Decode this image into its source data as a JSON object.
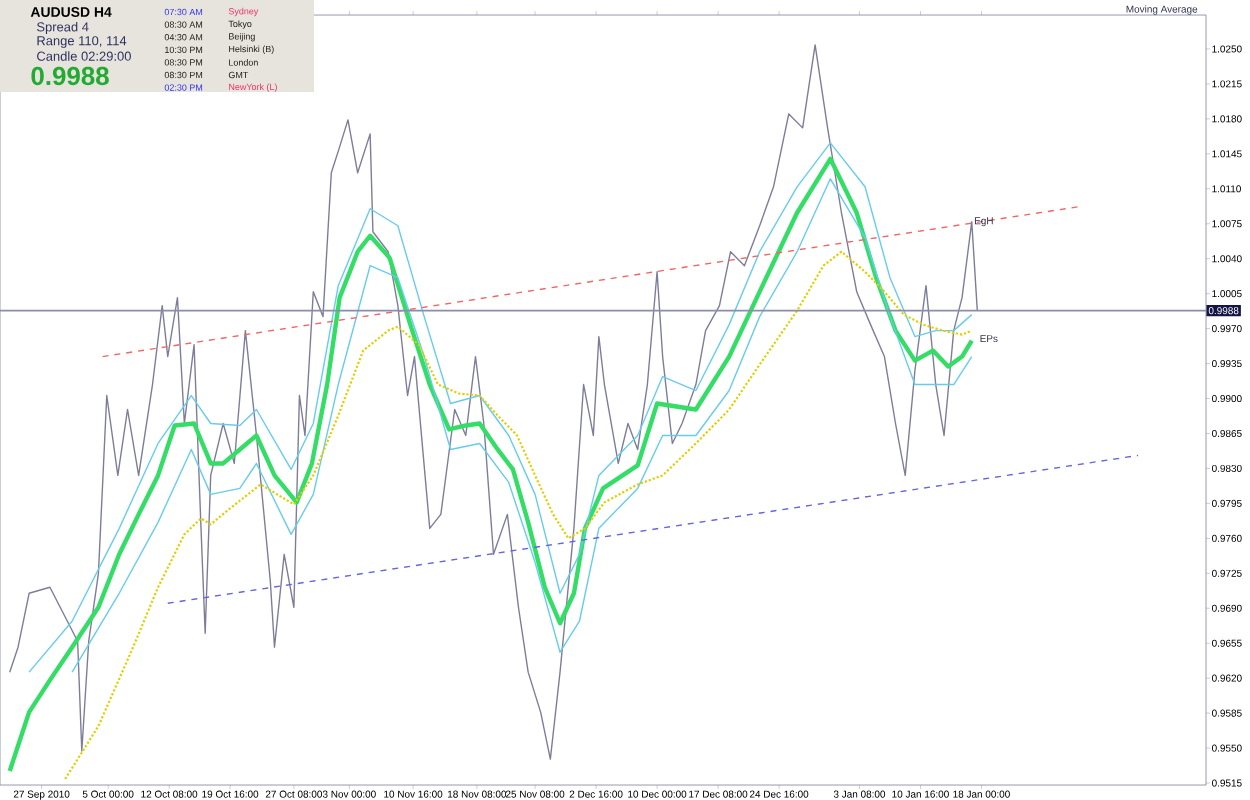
{
  "chart_data": {
    "type": "line",
    "title": "AUDUSD  H4",
    "annotations": [
      "Spread  4",
      "Range  110, 114",
      "Candle  02:29:00",
      "0.9988",
      "07:30 AM",
      "Sydney",
      "08:30 AM",
      "Tokyo",
      "04:30 AM",
      "Beijing",
      "10:30 PM",
      "Helsinki (B)",
      "08:30 PM",
      "London",
      "08:30 PM",
      "GMT",
      "02:30 PM",
      "NewYork (L)",
      "Moving Average",
      {
        "text": "EgH",
        "x": "2011-01-16T20:00",
        "y": 1.0077
      },
      {
        "text": "EPs",
        "x": "2011-01-17T12:00",
        "y": 0.996
      }
    ],
    "xlim": [
      "2010-09-22",
      "2011-02-14"
    ],
    "ylim": [
      0.9513,
      1.0284
    ],
    "xticks": [
      {
        "value": "2010-09-27",
        "label": "27 Sep 2010"
      },
      {
        "value": "2010-10-05",
        "label": "5 Oct 00:00"
      },
      {
        "value": "2010-10-12T08:00",
        "label": "12 Oct 08:00"
      },
      {
        "value": "2010-10-19T16:00",
        "label": "19 Oct 16:00"
      },
      {
        "value": "2010-10-27T08:00",
        "label": "27 Oct 08:00"
      },
      {
        "value": "2010-11-03",
        "label": "3 Nov 00:00"
      },
      {
        "value": "2010-11-10T16:00",
        "label": "10 Nov 16:00"
      },
      {
        "value": "2010-11-18T08:00",
        "label": "18 Nov 08:00"
      },
      {
        "value": "2010-11-25T08:00",
        "label": "25 Nov 08:00"
      },
      {
        "value": "2010-12-02T16:00",
        "label": "2 Dec 16:00"
      },
      {
        "value": "2010-12-10",
        "label": "10 Dec 00:00"
      },
      {
        "value": "2010-12-17T08:00",
        "label": "17 Dec 08:00"
      },
      {
        "value": "2010-12-24T16:00",
        "label": "24 Dec 16:00"
      },
      {
        "value": "2011-01-03T08:00",
        "label": "3 Jan 08:00"
      },
      {
        "value": "2011-01-10T16:00",
        "label": "10 Jan 16:00"
      },
      {
        "value": "2011-01-18",
        "label": "18 Jan 00:00"
      }
    ],
    "yticks": [
      {
        "value": 0.9515,
        "label": "0.9515"
      },
      {
        "value": 0.955,
        "label": "0.9550"
      },
      {
        "value": 0.9585,
        "label": "0.9585"
      },
      {
        "value": 0.962,
        "label": "0.9620"
      },
      {
        "value": 0.9655,
        "label": "0.9655"
      },
      {
        "value": 0.969,
        "label": "0.9690"
      },
      {
        "value": 0.9725,
        "label": "0.9725"
      },
      {
        "value": 0.976,
        "label": "0.9760"
      },
      {
        "value": 0.9795,
        "label": "0.9795"
      },
      {
        "value": 0.983,
        "label": "0.9830"
      },
      {
        "value": 0.9865,
        "label": "0.9865"
      },
      {
        "value": 0.99,
        "label": "0.9900"
      },
      {
        "value": 0.9935,
        "label": "0.9935"
      },
      {
        "value": 0.997,
        "label": "0.9970"
      },
      {
        "value": 1.0005,
        "label": "1.0005"
      },
      {
        "value": 1.004,
        "label": "1.0040"
      },
      {
        "value": 1.0075,
        "label": "1.0075"
      },
      {
        "value": 1.011,
        "label": "1.0110"
      },
      {
        "value": 1.0145,
        "label": "1.0145"
      },
      {
        "value": 1.018,
        "label": "1.0180"
      },
      {
        "value": 1.0215,
        "label": "1.0215"
      },
      {
        "value": 1.025,
        "label": "1.0250"
      }
    ],
    "ref_lines": [
      {
        "axis": "y",
        "value": 0.9988,
        "label": "0.9988",
        "color": "#8c8cab"
      }
    ],
    "series": [
      {
        "color": "#7d7d9b",
        "line_style": "solid",
        "x": [
          "2010-09-23T04:00",
          "2010-09-24T04:00",
          "2010-09-25T12:00",
          "2010-09-28T00:00",
          "2010-10-01T08:00",
          "2010-10-01T20:00",
          "2010-10-02T16:00",
          "2010-10-03T20:00",
          "2010-10-04T20:00",
          "2010-10-06T04:00",
          "2010-10-07T08:00",
          "2010-10-08T16:00",
          "2010-10-10T08:00",
          "2010-10-11T12:00",
          "2010-10-12T04:00",
          "2010-10-13T08:00",
          "2010-10-14T04:00",
          "2010-10-15T08:00",
          "2010-10-16T04:00",
          "2010-10-16T16:00",
          "2010-10-17T08:00",
          "2010-10-18T20:00",
          "2010-10-20T04:00",
          "2010-10-21T12:00",
          "2010-10-22T20:00",
          "2010-10-24T12:00",
          "2010-10-25T00:00",
          "2010-10-26T04:00",
          "2010-10-27T08:00",
          "2010-10-28T00:00",
          "2010-10-28T16:00",
          "2010-10-29T16:00",
          "2010-10-30T20:00",
          "2010-10-31T20:00",
          "2010-11-01T20:00",
          "2010-11-02T20:00",
          "2010-11-04T00:00",
          "2010-11-05T12:00",
          "2010-11-05T20:00",
          "2010-11-07T16:00",
          "2010-11-08T20:00",
          "2010-11-10T00:00",
          "2010-11-10T20:00",
          "2010-11-12T16:00",
          "2010-11-14T00:00",
          "2010-11-15T16:00",
          "2010-11-17T00:00",
          "2010-11-18T04:00",
          "2010-11-19T04:00",
          "2010-11-20T08:00",
          "2010-11-22T00:00",
          "2010-11-23T08:00",
          "2010-11-24T12:00",
          "2010-11-26T00:00",
          "2010-11-27T04:00",
          "2010-11-28T08:00",
          "2010-11-30T00:00",
          "2010-12-01T04:00",
          "2010-12-02T08:00",
          "2010-12-03T00:00",
          "2010-12-03T16:00",
          "2010-12-05T08:00",
          "2010-12-06T12:00",
          "2010-12-07T16:00",
          "2010-12-08T20:00",
          "2010-12-10T00:00",
          "2010-12-10T16:00",
          "2010-12-11T20:00",
          "2010-12-13T00:00",
          "2010-12-14T16:00",
          "2010-12-15T20:00",
          "2010-12-17T12:00",
          "2010-12-18T20:00",
          "2010-12-20T12:00",
          "2010-12-22T08:00",
          "2010-12-24T00:00",
          "2010-12-25T20:00",
          "2010-12-27T12:00",
          "2010-12-29T00:00",
          "2010-12-30T12:00",
          "2011-01-01T04:00",
          "2011-01-03T00:00",
          "2011-01-04T16:00",
          "2011-01-06T08:00",
          "2011-01-07T16:00",
          "2011-01-08T20:00",
          "2011-01-10T00:00",
          "2011-01-11T08:00",
          "2011-01-12T12:00",
          "2011-01-13T12:00",
          "2011-01-14T16:00",
          "2011-01-15T16:00",
          "2011-01-16T20:00",
          "2011-01-17T12:00"
        ],
        "values": [
          0.9626,
          0.9651,
          0.9705,
          0.9711,
          0.9657,
          0.9547,
          0.9657,
          0.9725,
          0.9903,
          0.9823,
          0.9889,
          0.9823,
          0.9914,
          0.9993,
          0.9942,
          1.0001,
          0.9875,
          0.9954,
          0.977,
          0.9665,
          0.9823,
          0.9875,
          0.9835,
          0.9968,
          0.9863,
          0.9717,
          0.9651,
          0.9744,
          0.9691,
          0.9903,
          0.9863,
          1.0007,
          0.9982,
          1.0126,
          1.0152,
          1.0179,
          1.0126,
          1.0165,
          1.0067,
          1.0047,
          0.9993,
          0.9903,
          0.9942,
          0.977,
          0.9784,
          0.9889,
          0.9863,
          0.9942,
          0.9875,
          0.9744,
          0.9784,
          0.9691,
          0.9626,
          0.9586,
          0.9539,
          0.9626,
          0.977,
          0.9914,
          0.9863,
          0.9962,
          0.9914,
          0.9835,
          0.9875,
          0.9849,
          0.9914,
          1.0027,
          0.9942,
          0.9855,
          0.9875,
          0.9914,
          0.9968,
          0.9993,
          1.0047,
          1.0033,
          1.0073,
          1.0112,
          1.0185,
          1.0171,
          1.0254,
          1.0171,
          1.0086,
          1.0007,
          0.9974,
          0.9942,
          0.9875,
          0.9823,
          0.9928,
          1.0013,
          0.9914,
          0.9863,
          0.9968,
          1.0001,
          1.0077,
          0.9988
        ]
      },
      {
        "color": "#33dd66",
        "line_style": "solid",
        "x": [
          "2010-09-23T04:00",
          "2010-09-25T12:00",
          "2010-09-28T00:00",
          "2010-09-30T16:00",
          "2010-10-03T20:00",
          "2010-10-06T08:00",
          "2010-10-08T16:00",
          "2010-10-11T00:00",
          "2010-10-13T00:00",
          "2010-10-15T08:00",
          "2010-10-17T08:00",
          "2010-10-18T20:00",
          "2010-10-20T20:00",
          "2010-10-22T20:00",
          "2010-10-25T00:00",
          "2010-10-27T16:00",
          "2010-10-29T12:00",
          "2010-10-31T08:00",
          "2010-11-01T20:00",
          "2010-11-04T00:00",
          "2010-11-05T12:00",
          "2010-11-07T20:00",
          "2010-11-10T08:00",
          "2010-11-12T16:00",
          "2010-11-15T00:00",
          "2010-11-17T00:00",
          "2010-11-18T16:00",
          "2010-11-20T20:00",
          "2010-11-22T16:00",
          "2010-11-24T12:00",
          "2010-11-26T12:00",
          "2010-11-28T08:00",
          "2010-11-30T00:00",
          "2010-12-01T08:00",
          "2010-12-03T12:00",
          "2010-12-07T16:00",
          "2010-12-10T00:00",
          "2010-12-14T16:00",
          "2010-12-18T16:00",
          "2010-12-22T08:00",
          "2010-12-26T20:00",
          "2010-12-30T20:00",
          "2011-01-03T00:00",
          "2011-01-05T08:00",
          "2011-01-07T16:00",
          "2011-01-10T00:00",
          "2011-01-12T04:00",
          "2011-01-14T00:00",
          "2011-01-15T16:00",
          "2011-01-16T20:00"
        ],
        "values": [
          0.9527,
          0.9586,
          0.9618,
          0.9651,
          0.9691,
          0.9744,
          0.9784,
          0.9823,
          0.9873,
          0.9875,
          0.9835,
          0.9835,
          0.9849,
          0.9863,
          0.9823,
          0.9796,
          0.9835,
          0.9914,
          1.0001,
          1.0047,
          1.0063,
          1.0041,
          0.9974,
          0.9914,
          0.9869,
          0.9873,
          0.9875,
          0.9849,
          0.9829,
          0.9776,
          0.9711,
          0.9675,
          0.9705,
          0.977,
          0.981,
          0.9833,
          0.9895,
          0.9889,
          0.9942,
          1.0007,
          1.0086,
          1.014,
          1.0086,
          1.0021,
          0.9968,
          0.9938,
          0.9948,
          0.9932,
          0.9942,
          0.9958
        ]
      },
      {
        "color": "#66ccee",
        "line_style": "solid",
        "x": [
          "2010-09-25T12:00",
          "2010-09-30T16:00",
          "2010-10-06T08:00",
          "2010-10-11T00:00",
          "2010-10-15T00:00",
          "2010-10-17T08:00",
          "2010-10-20T20:00",
          "2010-10-22T20:00",
          "2010-10-27T00:00",
          "2010-10-29T16:00",
          "2010-11-01T16:00",
          "2010-11-05T12:00",
          "2010-11-08T20:00",
          "2010-11-12T00:00",
          "2010-11-15T04:00",
          "2010-11-18T16:00",
          "2010-11-22T04:00",
          "2010-11-25T08:00",
          "2010-11-28T08:00",
          "2010-11-30T16:00",
          "2010-12-03T00:00",
          "2010-12-07T16:00",
          "2010-12-10T16:00",
          "2010-12-14T16:00",
          "2010-12-18T16:00",
          "2010-12-22T08:00",
          "2010-12-26T20:00",
          "2010-12-30T20:00",
          "2011-01-04T00:00",
          "2011-01-07T00:00",
          "2011-01-10T00:00",
          "2011-01-12T12:00",
          "2011-01-14T16:00",
          "2011-01-16T20:00"
        ],
        "values": [
          0.9626,
          0.9677,
          0.977,
          0.9855,
          0.9903,
          0.9875,
          0.9873,
          0.9889,
          0.9829,
          0.9875,
          1.0013,
          1.009,
          1.0073,
          0.9982,
          0.9895,
          0.9903,
          0.9863,
          0.9804,
          0.9705,
          0.9744,
          0.9823,
          0.9863,
          0.9922,
          0.9908,
          0.9974,
          1.0047,
          1.0112,
          1.0156,
          1.0112,
          1.0021,
          0.9962,
          0.9968,
          0.9968,
          0.9984
        ]
      },
      {
        "color": "#66ccee",
        "line_style": "solid",
        "x": [
          "2010-09-30T16:00",
          "2010-10-06T08:00",
          "2010-10-11T00:00",
          "2010-10-15T00:00",
          "2010-10-17T08:00",
          "2010-10-20T20:00",
          "2010-10-22T20:00",
          "2010-10-27T00:00",
          "2010-10-29T16:00",
          "2010-11-01T16:00",
          "2010-11-05T12:00",
          "2010-11-08T20:00",
          "2010-11-12T00:00",
          "2010-11-15T04:00",
          "2010-11-18T16:00",
          "2010-11-22T04:00",
          "2010-11-25T08:00",
          "2010-11-28T08:00",
          "2010-11-30T16:00",
          "2010-12-03T00:00",
          "2010-12-07T16:00",
          "2010-12-10T16:00",
          "2010-12-14T16:00",
          "2010-12-18T16:00",
          "2010-12-22T08:00",
          "2010-12-26T20:00",
          "2010-12-30T20:00",
          "2011-01-04T00:00",
          "2011-01-07T00:00",
          "2011-01-10T00:00",
          "2011-01-12T12:00",
          "2011-01-14T16:00",
          "2011-01-16T20:00"
        ],
        "values": [
          0.9626,
          0.9705,
          0.9776,
          0.9849,
          0.9804,
          0.981,
          0.9835,
          0.9764,
          0.9804,
          0.9914,
          1.0033,
          1.0021,
          0.9942,
          0.9849,
          0.9855,
          0.9816,
          0.9736,
          0.9646,
          0.9677,
          0.977,
          0.981,
          0.9863,
          0.9863,
          0.9908,
          0.9982,
          1.0047,
          1.012,
          1.0061,
          0.9982,
          0.9914,
          0.9914,
          0.9914,
          0.9942
        ]
      },
      {
        "color": "#e0d000",
        "line_style": "dotted",
        "x": [
          "2010-09-29T20:00",
          "2010-10-03T20:00",
          "2010-10-08T00:00",
          "2010-10-11T00:00",
          "2010-10-14T04:00",
          "2010-10-16T04:00",
          "2010-10-17T08:00",
          "2010-10-19T16:00",
          "2010-10-23T08:00",
          "2010-10-25T08:00",
          "2010-10-27T08:00",
          "2010-10-29T16:00",
          "2010-11-01T16:00",
          "2010-11-04T16:00",
          "2010-11-07T16:00",
          "2010-11-08T20:00",
          "2010-11-11T08:00",
          "2010-11-13T16:00",
          "2010-11-16T04:00",
          "2010-11-18T16:00",
          "2010-11-20T20:00",
          "2010-11-23T04:00",
          "2010-11-25T08:00",
          "2010-11-27T12:00",
          "2010-11-29T08:00",
          "2010-12-01T08:00",
          "2010-12-03T16:00",
          "2010-12-07T16:00",
          "2010-12-10T16:00",
          "2010-12-14T16:00",
          "2010-12-18T16:00",
          "2010-12-22T08:00",
          "2010-12-26T20:00",
          "2010-12-30T00:00",
          "2011-01-01T04:00",
          "2011-01-04T00:00",
          "2011-01-06T08:00",
          "2011-01-08T16:00",
          "2011-01-11T00:00",
          "2011-01-13T08:00",
          "2011-01-15T16:00",
          "2011-01-16T20:00"
        ],
        "values": [
          0.9519,
          0.9572,
          0.9651,
          0.9711,
          0.9764,
          0.978,
          0.9774,
          0.979,
          0.9814,
          0.9804,
          0.9794,
          0.9823,
          0.9883,
          0.9948,
          0.9968,
          0.9972,
          0.9954,
          0.9914,
          0.9905,
          0.9903,
          0.9883,
          0.9863,
          0.9823,
          0.9784,
          0.976,
          0.977,
          0.9796,
          0.9814,
          0.9823,
          0.9855,
          0.9889,
          0.9934,
          0.9988,
          1.0033,
          1.0047,
          1.0027,
          1.0007,
          0.9984,
          0.9974,
          0.9968,
          0.9964,
          0.9968
        ]
      },
      {
        "color": "#ee6666",
        "line_style": "dashed",
        "x": [
          "2010-10-04T08:00",
          "2011-01-29T16:00"
        ],
        "values": [
          0.9942,
          1.0092
        ]
      },
      {
        "color": "#6666dd",
        "line_style": "dashed",
        "x": [
          "2010-10-12T04:00",
          "2011-02-05T20:00"
        ],
        "values": [
          0.9695,
          0.9843
        ]
      }
    ]
  }
}
